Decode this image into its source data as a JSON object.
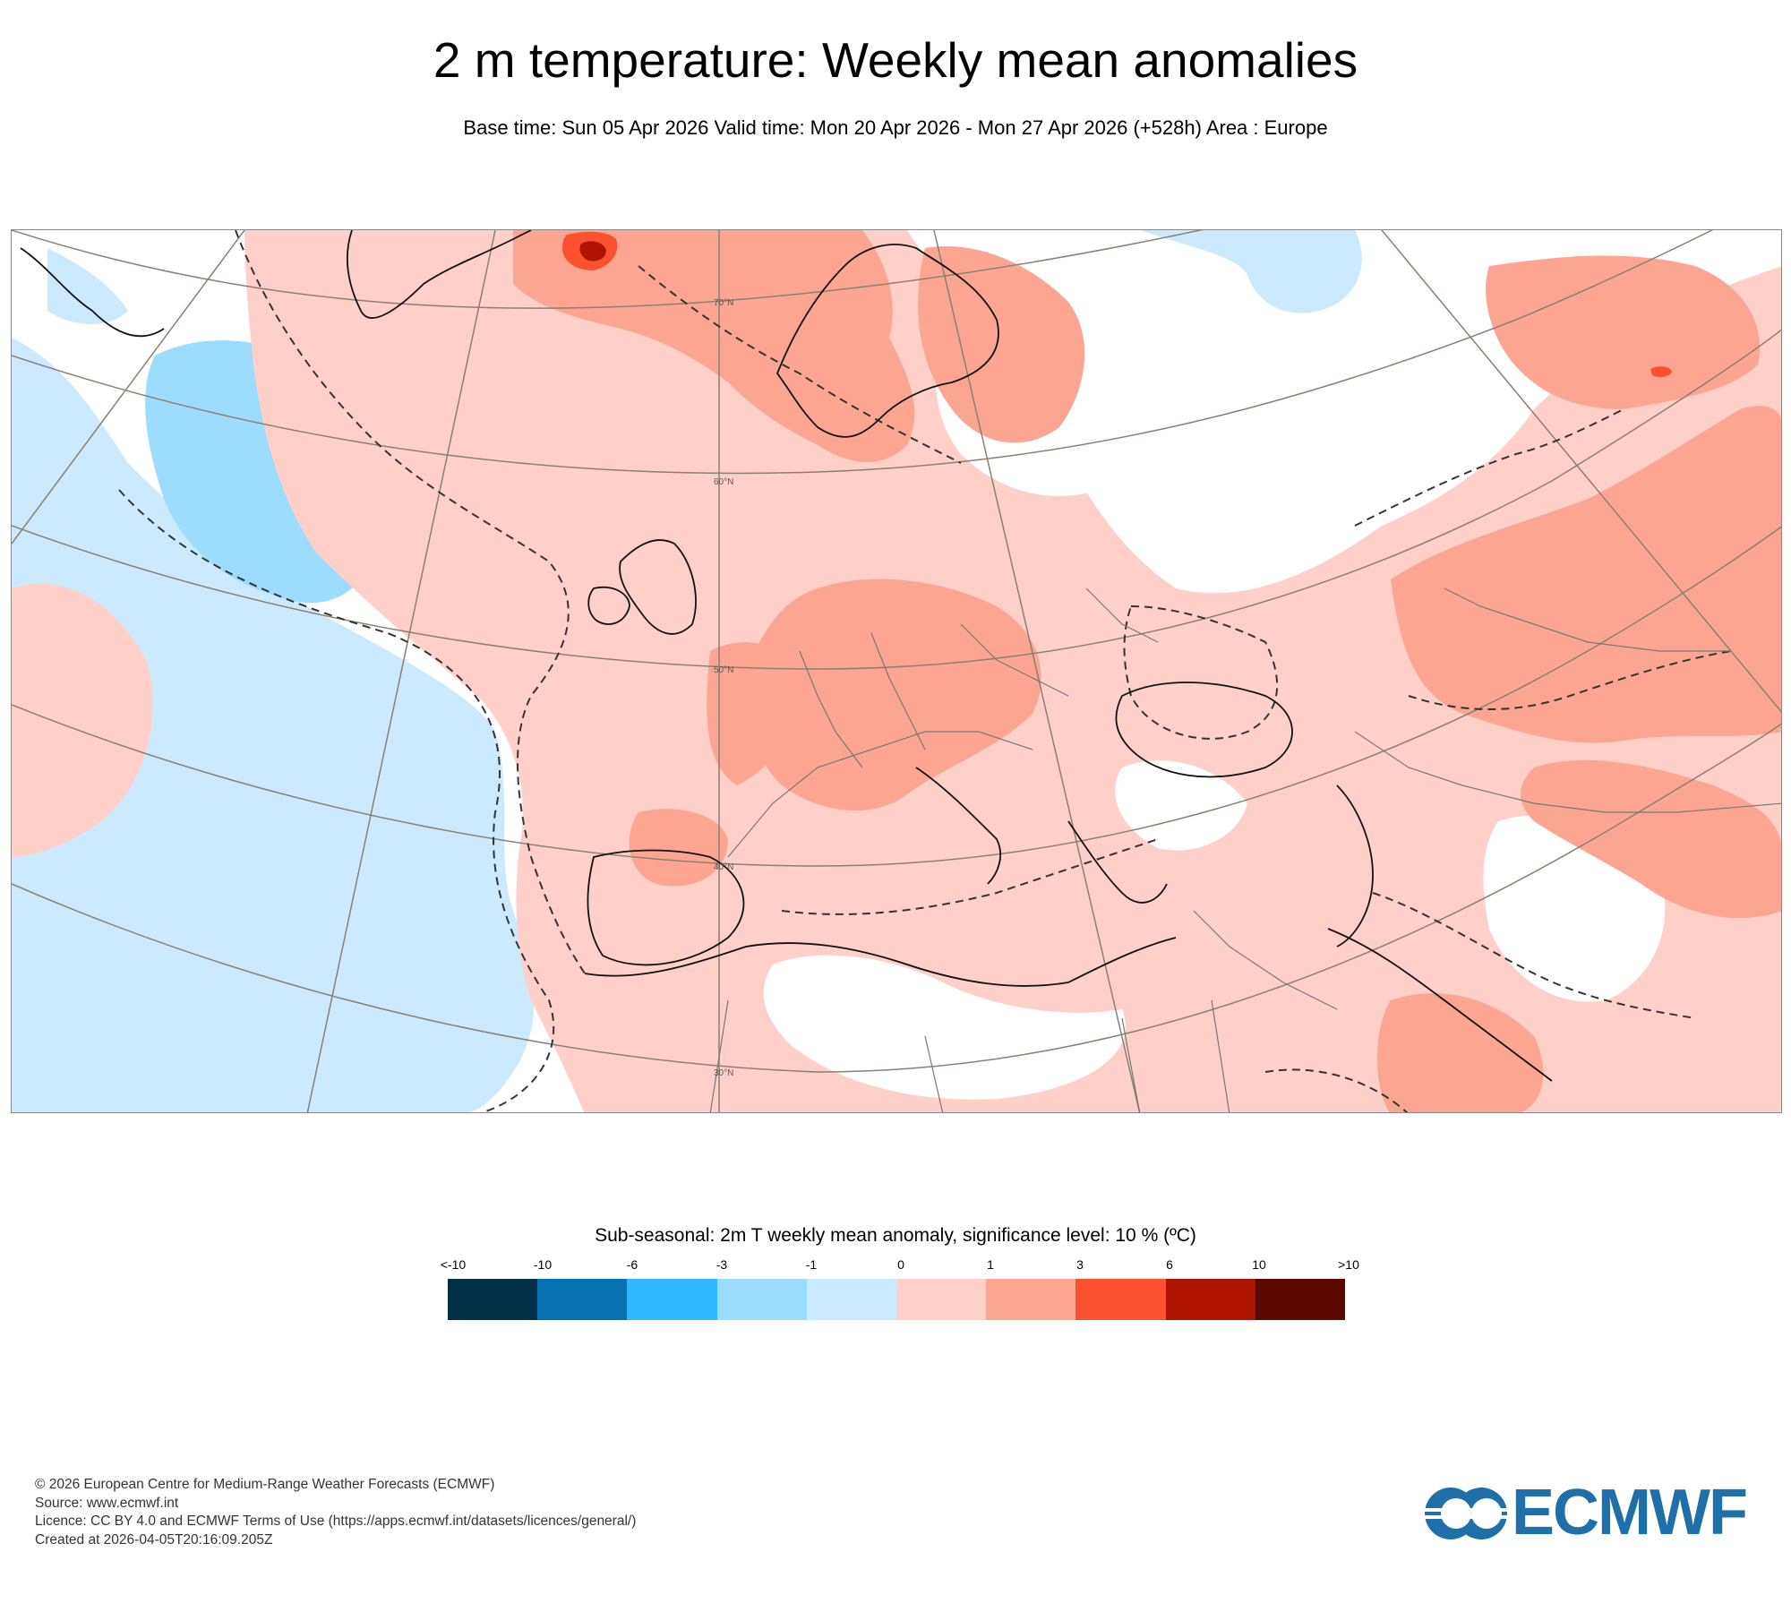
{
  "title": "2 m temperature: Weekly mean anomalies",
  "subtitle": "Base time: Sun 05 Apr 2026 Valid time: Mon 20 Apr 2026 - Mon 27 Apr 2026 (+528h) Area : Europe",
  "map": {
    "lat_labels": [
      "70°N",
      "60°N",
      "50°N",
      "40°N",
      "30°N"
    ]
  },
  "legend": {
    "title": "Sub-seasonal: 2m T weekly mean anomaly, significance level: 10 % (ºC)",
    "labels": [
      "<-10",
      "-10",
      "-6",
      "-3",
      "-1",
      "0",
      "1",
      "3",
      "6",
      "10",
      ">10"
    ],
    "colors": [
      "#033047",
      "#0571b0",
      "#30b6ff",
      "#9bdcff",
      "#cbeaff",
      "#ffd0c8",
      "#fca592",
      "#fc512f",
      "#af1301",
      "#5b0900"
    ]
  },
  "footer": {
    "copyright": "© 2026 European Centre for Medium-Range Weather Forecasts (ECMWF)",
    "source": "Source: www.ecmwf.int",
    "licence": "Licence: CC BY 4.0 and ECMWF Terms of Use (https://apps.ecmwf.int/datasets/licences/general/)",
    "created": "Created at 2026-04-05T20:16:09.205Z"
  },
  "logo": {
    "text": "ECMWF",
    "color": "#1f6fa8"
  }
}
